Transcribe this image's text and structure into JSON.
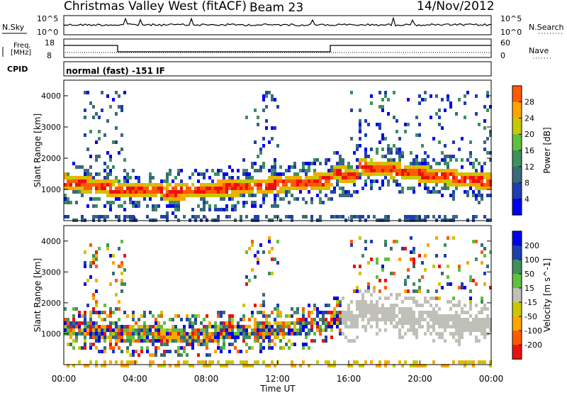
{
  "header": {
    "station": "Christmas Valley West (fitACF)",
    "beam": "Beam 23",
    "date": "14/Nov/2012"
  },
  "noise_panel": {
    "left_label": "N.Sky",
    "left_ticks": [
      "10^5",
      "10^0"
    ],
    "right_label": "N.Search",
    "right_ticks": [
      "10^5",
      "10^0"
    ]
  },
  "freq_panel": {
    "left_label_1": "Freq.",
    "left_label_2": "[MHz]",
    "left_ticks": [
      "18",
      "8"
    ],
    "right_label": "Nave",
    "right_ticks": [
      "60",
      "0"
    ]
  },
  "cpid_panel": {
    "label": "CPID",
    "text": "normal (fast) -151 IF"
  },
  "colors": {
    "scale": [
      "#0000ee",
      "#1e3fb0",
      "#3a6a7a",
      "#3f8f5e",
      "#5fbf3f",
      "#c8c800",
      "#ffa500",
      "#ff5a00",
      "#ee1010"
    ],
    "gray": "#c0c0b8"
  },
  "chart_data": [
    {
      "type": "heatmap",
      "title": "",
      "xlabel": "Time UT",
      "ylabel": "Slant Range [km]",
      "x_ticks": [
        "00:00",
        "04:00",
        "08:00",
        "12:00",
        "16:00",
        "20:00",
        "00:00"
      ],
      "y_ticks": [
        "1000",
        "2000",
        "3000",
        "4000"
      ],
      "ylim": [
        0,
        4500
      ],
      "colorbar": {
        "label": "Power [dB]",
        "ticks": [
          "4",
          "8",
          "12",
          "16",
          "20",
          "24",
          "28"
        ],
        "range": [
          0,
          32
        ]
      }
    },
    {
      "type": "heatmap",
      "title": "",
      "xlabel": "Time UT",
      "ylabel": "Slant Range [km]",
      "x_ticks": [
        "00:00",
        "04:00",
        "08:00",
        "12:00",
        "16:00",
        "20:00",
        "00:00"
      ],
      "y_ticks": [
        "1000",
        "2000",
        "3000",
        "4000"
      ],
      "ylim": [
        0,
        4500
      ],
      "colorbar": {
        "label": "Velocity [m s^-1]",
        "ticks": [
          "200",
          "100",
          "50",
          "15",
          "-15",
          "-50",
          "-100",
          "-200"
        ]
      }
    }
  ]
}
